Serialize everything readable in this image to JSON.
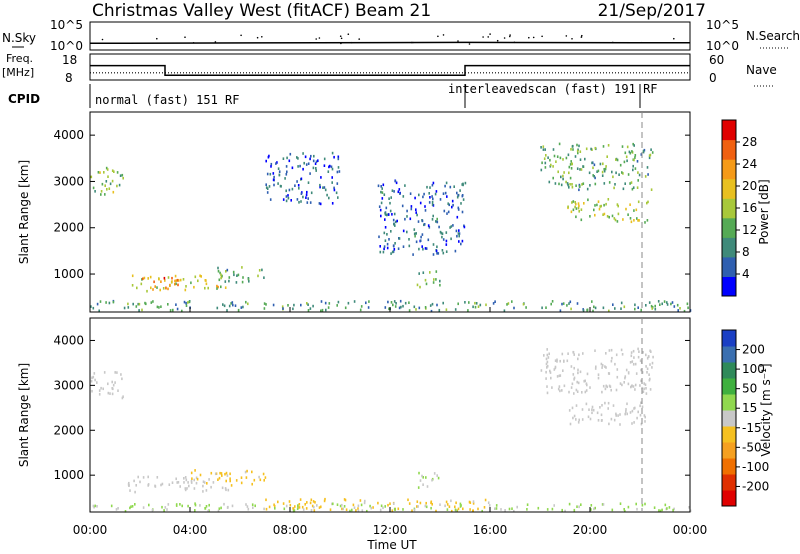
{
  "header": {
    "title": "Christmas Valley West (fitACF)",
    "beam": "Beam 21",
    "date": "21/Sep/2017"
  },
  "panels": {
    "sky_label": "N.Sky",
    "search_label": "N.Search",
    "freq_label": "Freq.",
    "freq_unit": "[MHz]",
    "nave_label": "Nave",
    "cpid_label": "CPID",
    "noise_ticks_left": [
      "10^5",
      "10^0"
    ],
    "noise_ticks_right": [
      "10^5",
      "10^0"
    ],
    "freq_ticks_left": [
      "18",
      "8"
    ],
    "freq_ticks_right": [
      "60",
      "0"
    ]
  },
  "cpid": {
    "normal": "normal (fast) 151 RF",
    "interleaved": "interleavedscan (fast) 191 RF"
  },
  "axes": {
    "ylabel": "Slant Range [km]",
    "xlabel": "Time UT",
    "x_ticks": [
      "00:00",
      "04:00",
      "08:00",
      "12:00",
      "16:00",
      "20:00",
      "00:00"
    ],
    "y_ticks": [
      "1000",
      "2000",
      "3000",
      "4000"
    ]
  },
  "colorbars": {
    "power": {
      "label": "Power [dB]",
      "ticks": [
        "4",
        "8",
        "12",
        "16",
        "20",
        "24",
        "28"
      ],
      "colors": [
        "#0000ff",
        "#2f5fb0",
        "#3f8a7a",
        "#55aa55",
        "#a8c83a",
        "#e8c020",
        "#f59a18",
        "#f06010",
        "#e00000"
      ]
    },
    "velocity": {
      "label": "Velocity [m s⁻¹]",
      "ticks": [
        "200",
        "100",
        "50",
        "15",
        "-15",
        "-50",
        "-100",
        "-200"
      ],
      "colors": [
        "#1a3fc4",
        "#3a6fb0",
        "#2f8a5a",
        "#3fb03f",
        "#90d84f",
        "#c8c8c8",
        "#f5c020",
        "#f5a020",
        "#f07000",
        "#e03000",
        "#e00000"
      ]
    }
  },
  "chart_data": [
    {
      "type": "line",
      "name": "N.Sky / N.Search noise",
      "x": [
        "00:00",
        "15:00",
        "24:00"
      ],
      "series": [
        {
          "name": "N.Sky",
          "values": [
            1.5,
            1.7,
            1.6
          ]
        },
        {
          "name": "N.Search",
          "values": [
            1.3,
            1.4,
            1.3
          ]
        }
      ]
    },
    {
      "type": "line",
      "name": "Frequency / Nave",
      "x": [
        "00:00",
        "03:00",
        "03:00",
        "15:00",
        "15:00",
        "24:00"
      ],
      "series": [
        {
          "name": "Freq.",
          "values": [
            14,
            14,
            10,
            10,
            14,
            14
          ]
        },
        {
          "name": "Nave",
          "values": [
            18,
            18,
            18,
            18,
            18,
            18
          ]
        }
      ]
    },
    {
      "type": "heatmap",
      "name": "Power [dB]",
      "x_range": [
        0,
        24
      ],
      "y_range": [
        180,
        4500
      ],
      "echo_regions": [
        {
          "t0": 0.0,
          "t1": 1.3,
          "r0": 2700,
          "r1": 3300,
          "value": 14
        },
        {
          "t0": 1.5,
          "t1": 5.5,
          "r0": 600,
          "r1": 950,
          "value": 18
        },
        {
          "t0": 2.0,
          "t1": 3.5,
          "r0": 650,
          "r1": 900,
          "value": 26
        },
        {
          "t0": 5.0,
          "t1": 7.0,
          "r0": 800,
          "r1": 1150,
          "value": 12
        },
        {
          "t0": 13.0,
          "t1": 14.0,
          "r0": 700,
          "r1": 1050,
          "value": 12
        },
        {
          "t0": 7.0,
          "t1": 10.0,
          "r0": 2500,
          "r1": 3600,
          "value": 6
        },
        {
          "t0": 11.5,
          "t1": 15.0,
          "r0": 1400,
          "r1": 3000,
          "value": 6
        },
        {
          "t0": 18.0,
          "t1": 22.5,
          "r0": 2800,
          "r1": 3800,
          "value": 12
        },
        {
          "t0": 19.0,
          "t1": 22.3,
          "r0": 2100,
          "r1": 2600,
          "value": 16
        },
        {
          "t0": 0.0,
          "t1": 24.0,
          "r0": 180,
          "r1": 400,
          "value": 10
        }
      ]
    },
    {
      "type": "heatmap",
      "name": "Velocity [m s⁻¹]",
      "x_range": [
        0,
        24
      ],
      "y_range": [
        180,
        4500
      ],
      "echo_regions": [
        {
          "t0": 0.0,
          "t1": 1.3,
          "r0": 2700,
          "r1": 3300,
          "value": 0
        },
        {
          "t0": 1.5,
          "t1": 5.5,
          "r0": 600,
          "r1": 950,
          "value": 0
        },
        {
          "t0": 4.0,
          "t1": 7.0,
          "r0": 750,
          "r1": 1100,
          "value": -40
        },
        {
          "t0": 13.0,
          "t1": 14.0,
          "r0": 700,
          "r1": 1050,
          "value": 30
        },
        {
          "t0": 18.0,
          "t1": 22.5,
          "r0": 2800,
          "r1": 3800,
          "value": 0
        },
        {
          "t0": 19.0,
          "t1": 22.3,
          "r0": 2100,
          "r1": 2600,
          "value": 0
        },
        {
          "t0": 7.0,
          "t1": 16.0,
          "r0": 180,
          "r1": 450,
          "value": -40
        },
        {
          "t0": 0.0,
          "t1": 24.0,
          "r0": 180,
          "r1": 350,
          "value": 30
        }
      ]
    }
  ]
}
